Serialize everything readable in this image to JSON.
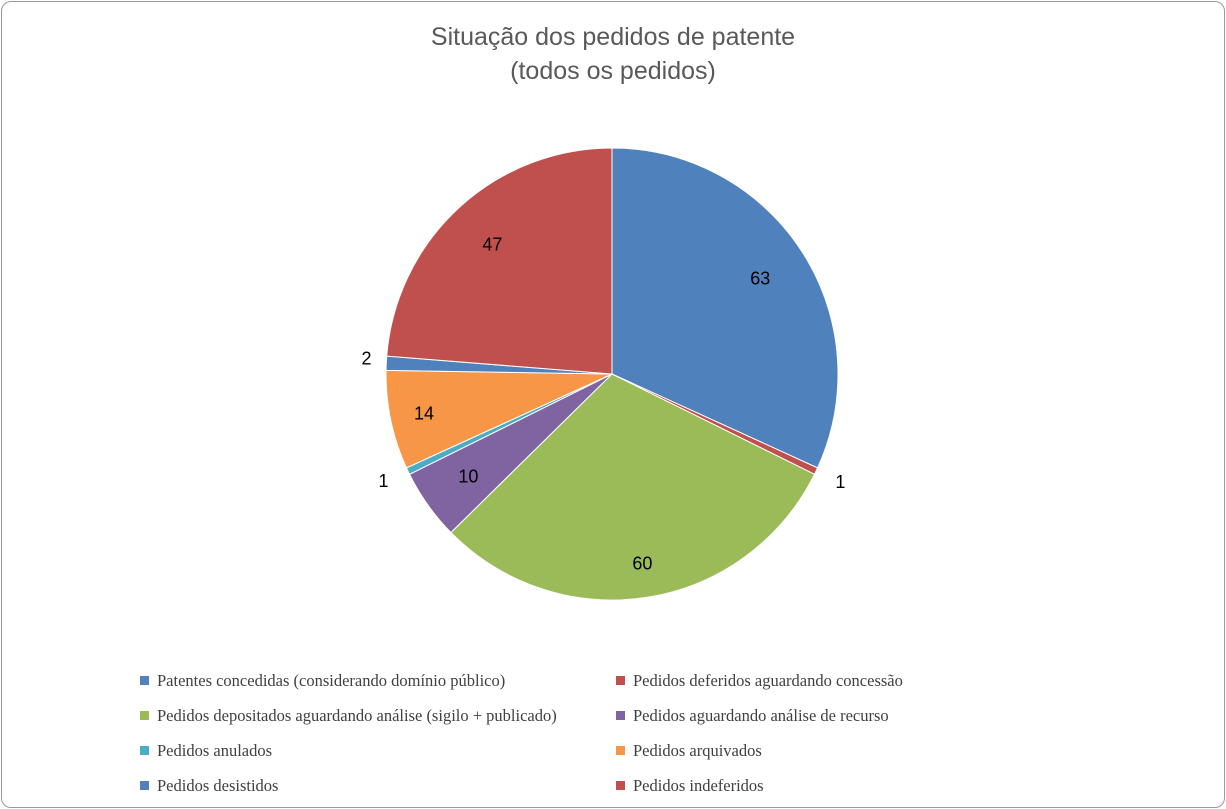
{
  "chart_data": {
    "type": "pie",
    "title": [
      "Situação dos pedidos de patente",
      "(todos os pedidos)"
    ],
    "legend_position": "bottom",
    "slices": [
      {
        "label": "Patentes concedidas (considerando domínio público)",
        "value": 63,
        "display": "63",
        "color": "#4F81BD"
      },
      {
        "label": "Pedidos deferidos aguardando concessão",
        "value": 1,
        "display": "1",
        "color": "#C0504D"
      },
      {
        "label": "Pedidos depositados aguardando análise (sigilo + publicado)",
        "value": 60,
        "display": "60",
        "color": "#9BBB59"
      },
      {
        "label": "Pedidos aguardando análise de recurso",
        "value": 10,
        "display": "10",
        "color": "#8064A2"
      },
      {
        "label": "Pedidos anulados",
        "value": 1,
        "display": "1",
        "color": "#4BACC6"
      },
      {
        "label": "Pedidos arquivados",
        "value": 14,
        "display": "14",
        "color": "#F79646"
      },
      {
        "label": "Pedidos desistidos",
        "value": 2,
        "display": "2",
        "color": "#4F81BD"
      },
      {
        "label": "Pedidos indeferidos",
        "value": 47,
        "display": "47",
        "color": "#C0504D"
      }
    ]
  }
}
